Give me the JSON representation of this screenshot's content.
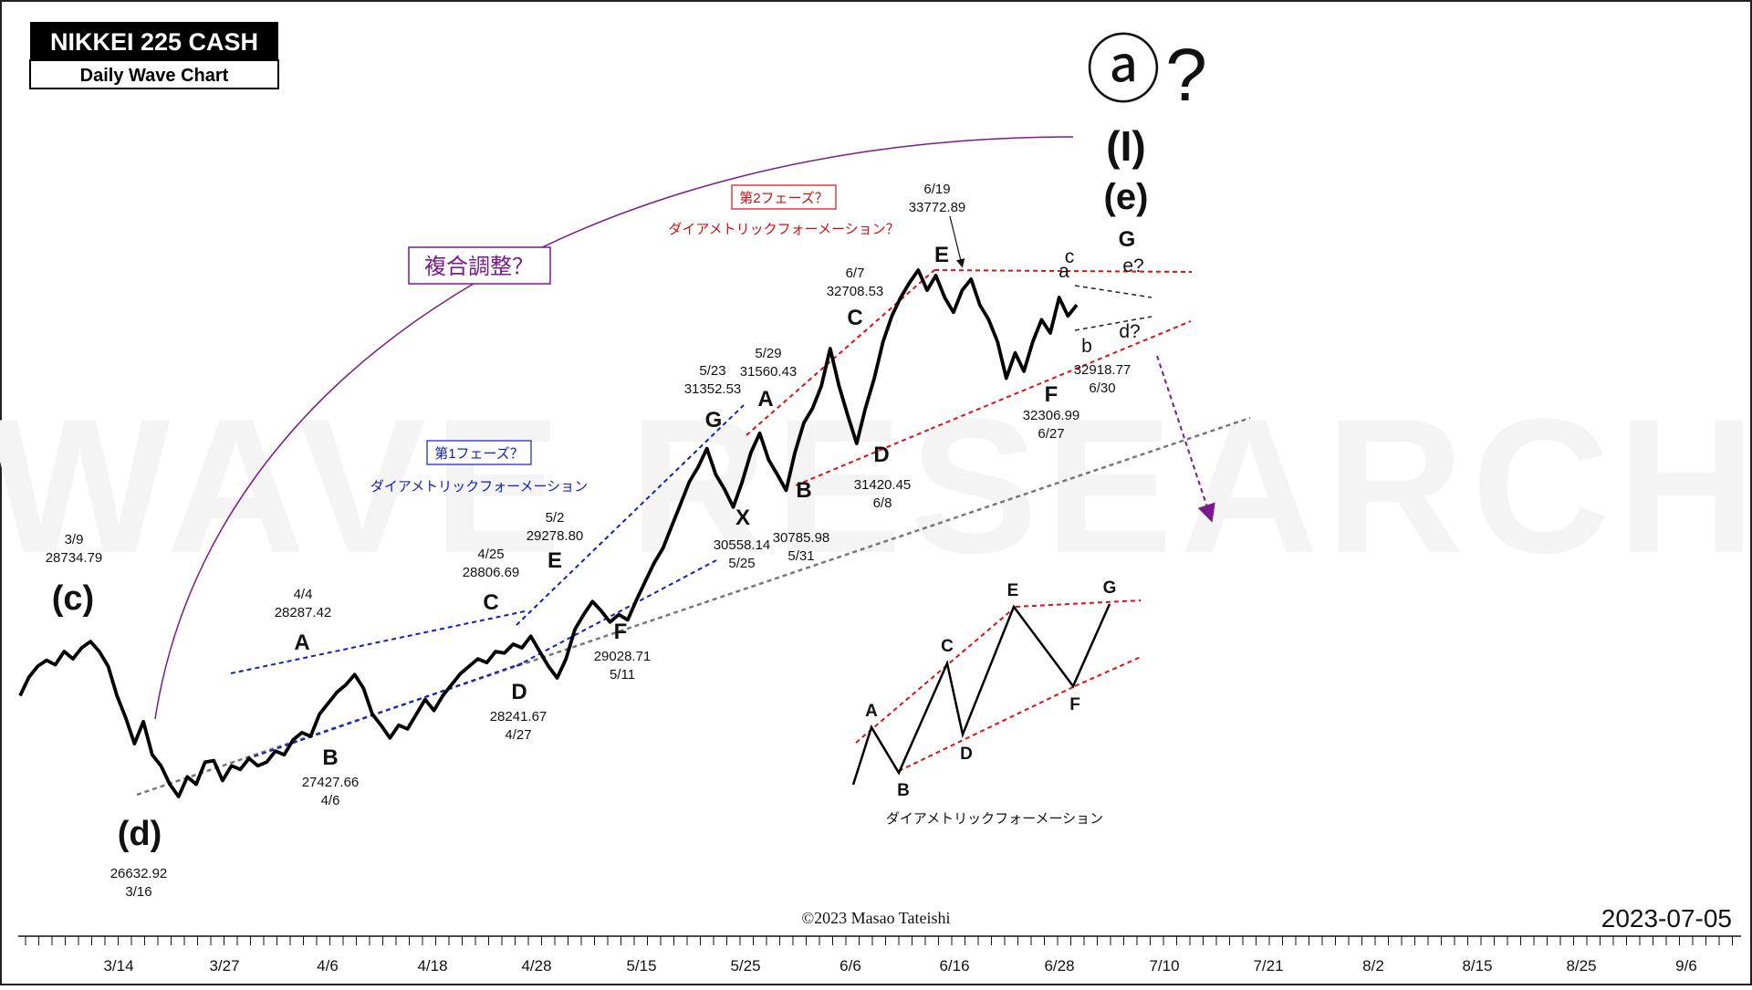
{
  "header": {
    "title": "NIKKEI 225 CASH",
    "subtitle": "Daily Wave Chart"
  },
  "watermark": "WAVE RESEARCH",
  "copyright": "©2023 Masao Tateishi",
  "date_stamp": "2023-07-05",
  "top_labels": {
    "circle_a": "ⓐ",
    "question": "?",
    "wave_I": "(I)",
    "wave_e_top": "(e)"
  },
  "boxes": {
    "complex": "複合調整？",
    "phase1": "第1フェーズ？",
    "phase2": "第2フェーズ？"
  },
  "annotations": {
    "diametric1": "ダイアメトリックフォーメーション",
    "diametric2": "ダイアメトリックフォーメーション？",
    "diametric_example": "ダイアメトリックフォーメーション"
  },
  "wave_labels": [
    {
      "text": "(c)",
      "size": "big"
    },
    {
      "text": "(d)",
      "size": "big"
    },
    {
      "text": "A"
    },
    {
      "text": "B"
    },
    {
      "text": "C"
    },
    {
      "text": "D"
    },
    {
      "text": "E"
    },
    {
      "text": "F"
    },
    {
      "text": "G"
    },
    {
      "text": "X"
    },
    {
      "text": "A"
    },
    {
      "text": "B"
    },
    {
      "text": "C"
    },
    {
      "text": "D"
    },
    {
      "text": "E"
    },
    {
      "text": "F"
    },
    {
      "text": "G"
    },
    {
      "text": "a",
      "size": "small"
    },
    {
      "text": "b",
      "size": "small"
    },
    {
      "text": "c",
      "size": "small"
    },
    {
      "text": "d?",
      "size": "small"
    },
    {
      "text": "e?",
      "size": "small"
    }
  ],
  "price_labels": [
    {
      "date": "3/9",
      "price": "28734.79"
    },
    {
      "date": "3/16",
      "price": "26632.92"
    },
    {
      "date": "4/4",
      "price": "28287.42"
    },
    {
      "date": "4/6",
      "price": "27427.66"
    },
    {
      "date": "4/25",
      "price": "28806.69"
    },
    {
      "date": "4/27",
      "price": "28241.67"
    },
    {
      "date": "5/2",
      "price": "29278.80"
    },
    {
      "date": "5/11",
      "price": "29028.71"
    },
    {
      "date": "5/23",
      "price": "31352.53"
    },
    {
      "date": "5/25",
      "price": "30558.14"
    },
    {
      "date": "5/29",
      "price": "31560.43"
    },
    {
      "date": "5/31",
      "price": "30785.98"
    },
    {
      "date": "6/7",
      "price": "32708.53"
    },
    {
      "date": "6/8",
      "price": "31420.45"
    },
    {
      "date": "6/19",
      "price": "33772.89"
    },
    {
      "date": "6/27",
      "price": "32306.99"
    },
    {
      "date": "6/30",
      "price": "32918.77"
    }
  ],
  "example_labels": [
    "A",
    "B",
    "C",
    "D",
    "E",
    "F",
    "G"
  ],
  "chart_data": {
    "type": "line",
    "title": "NIKKEI 225 CASH",
    "subtitle": "Daily Wave Chart",
    "x_ticks": [
      "3/14",
      "3/27",
      "4/6",
      "4/18",
      "4/28",
      "5/15",
      "5/25",
      "6/6",
      "6/16",
      "6/28",
      "7/10",
      "7/21",
      "8/2",
      "8/15",
      "8/25",
      "9/6"
    ],
    "series": [
      {
        "values": [
          28000,
          28250,
          28400,
          28480,
          28420,
          28600,
          28500,
          28650,
          28734.79,
          28600,
          28400,
          28000,
          27700,
          27350,
          27650,
          27200,
          27050,
          26800,
          26632.92,
          26900,
          26800,
          27100,
          27120,
          26850,
          27050,
          27000,
          27150,
          27050,
          27100,
          27250,
          27200,
          27400,
          27500,
          27450,
          27750,
          27900,
          28050,
          28150,
          28287.42,
          28100,
          27750,
          27600,
          27427.66,
          27600,
          27550,
          27750,
          27950,
          27800,
          28000,
          28150,
          28300,
          28400,
          28500,
          28450,
          28600,
          28580,
          28700,
          28650,
          28806.69,
          28600,
          28400,
          28241.67,
          28500,
          28900,
          29100,
          29278.8,
          29150,
          29000,
          29100,
          29028.71,
          29300,
          29550,
          29800,
          30000,
          30300,
          30600,
          30900,
          31100,
          31352.53,
          31000,
          30800,
          30558.14,
          30900,
          31300,
          31560.43,
          31200,
          31000,
          30785.98,
          31300,
          31700,
          31900,
          32200,
          32708.53,
          32200,
          31800,
          31420.45,
          31900,
          32300,
          32800,
          33150,
          33400,
          33600,
          33772.89,
          33500,
          33700,
          33400,
          33200,
          33500,
          33650,
          33300,
          33100,
          32800,
          32306.99,
          32650,
          32400,
          32800,
          33100,
          32918.77,
          33400,
          33150,
          33300
        ]
      }
    ],
    "xlim": [
      "3/6",
      "9/8"
    ],
    "ylim": [
      26200,
      34500
    ],
    "grid": false,
    "legend": "none"
  }
}
